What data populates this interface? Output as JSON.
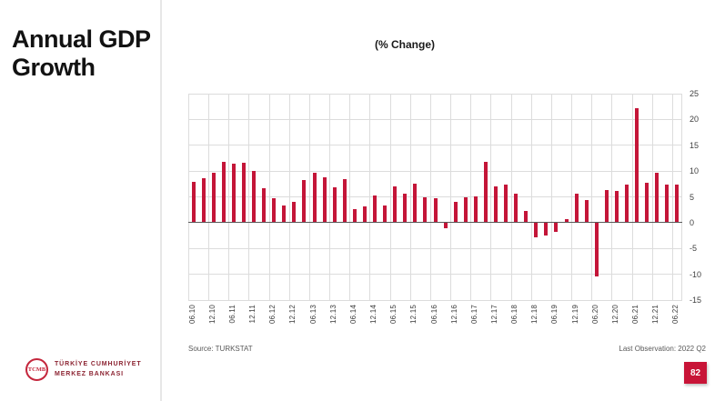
{
  "page": {
    "title": "Annual GDP Growth",
    "source": "Source: TURKSTAT",
    "last_observation": "Last Observation: 2022 Q2",
    "page_number": "82",
    "accent_color": "#c41538",
    "logo": {
      "monogram": "TCMB",
      "line1": "TÜRKİYE CUMHURİYET",
      "line2": "MERKEZ BANKASI"
    }
  },
  "chart_data": {
    "type": "bar",
    "title": "(% Change)",
    "ylabel": "",
    "xlabel": "",
    "bar_color": "#c41538",
    "axis_side": "right",
    "grid": true,
    "ylim": [
      -15,
      25
    ],
    "y_ticks": [
      25,
      20,
      15,
      10,
      5,
      0,
      -5,
      -10,
      -15
    ],
    "y_tick_labels": [
      "25",
      "20",
      "15",
      "10",
      "5",
      "0",
      "-5",
      "-10",
      "-15"
    ],
    "frequency": "quarterly",
    "tick_every_n_bars": 2,
    "x_tick_labels": [
      "06.10",
      "12.10",
      "06.11",
      "12.11",
      "06.12",
      "12.12",
      "06.13",
      "12.13",
      "06.14",
      "12.14",
      "06.15",
      "12.15",
      "06.16",
      "12.16",
      "06.17",
      "12.17",
      "06.18",
      "12.18",
      "06.19",
      "12.19",
      "06.20",
      "12.20",
      "06.21",
      "12.21",
      "06.22"
    ],
    "values": [
      7.9,
      8.6,
      9.6,
      11.8,
      11.5,
      11.6,
      10.0,
      6.6,
      4.8,
      3.4,
      4.0,
      8.3,
      9.7,
      8.8,
      6.8,
      8.4,
      2.6,
      3.2,
      5.3,
      3.4,
      7.0,
      5.6,
      7.5,
      4.9,
      4.8,
      -1.0,
      4.1,
      5.0,
      5.1,
      11.7,
      7.1,
      7.4,
      5.6,
      2.3,
      -2.9,
      -2.5,
      -1.8,
      0.7,
      5.6,
      4.3,
      -10.4,
      6.4,
      6.2,
      7.3,
      22.2,
      7.7,
      9.6,
      7.3,
      7.4
    ]
  }
}
